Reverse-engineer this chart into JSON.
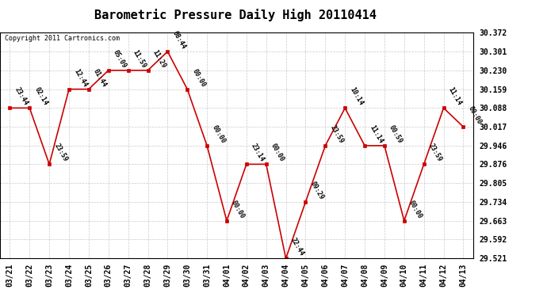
{
  "title": "Barometric Pressure Daily High 20110414",
  "copyright": "Copyright 2011 Cartronics.com",
  "x_labels": [
    "03/21",
    "03/22",
    "03/23",
    "03/24",
    "03/25",
    "03/26",
    "03/27",
    "03/28",
    "03/29",
    "03/30",
    "03/31",
    "04/01",
    "04/02",
    "04/03",
    "04/04",
    "04/05",
    "04/06",
    "04/07",
    "04/08",
    "04/09",
    "04/10",
    "04/11",
    "04/12",
    "04/13"
  ],
  "y_values": [
    30.088,
    30.088,
    29.876,
    30.159,
    30.159,
    30.23,
    30.23,
    30.23,
    30.301,
    30.159,
    29.946,
    29.663,
    29.876,
    29.876,
    29.521,
    29.734,
    29.946,
    30.088,
    29.946,
    29.946,
    29.663,
    29.876,
    30.088,
    30.017
  ],
  "point_labels": [
    "23:44",
    "02:14",
    "23:59",
    "12:44",
    "01:44",
    "05:09",
    "11:59",
    "11:29",
    "08:44",
    "00:00",
    "00:00",
    "00:00",
    "23:14",
    "00:00",
    "22:44",
    "09:29",
    "23:59",
    "10:14",
    "11:14",
    "00:59",
    "00:00",
    "23:59",
    "11:14",
    "00:00"
  ],
  "y_ticks": [
    29.521,
    29.592,
    29.663,
    29.734,
    29.805,
    29.876,
    29.946,
    30.017,
    30.088,
    30.159,
    30.23,
    30.301,
    30.372
  ],
  "ylim": [
    29.521,
    30.372
  ],
  "line_color": "#cc0000",
  "marker_color": "#cc0000",
  "bg_color": "#ffffff",
  "grid_color": "#bbbbbb",
  "title_fontsize": 11,
  "annotation_fontsize": 6,
  "tick_fontsize": 7,
  "copyright_fontsize": 6
}
